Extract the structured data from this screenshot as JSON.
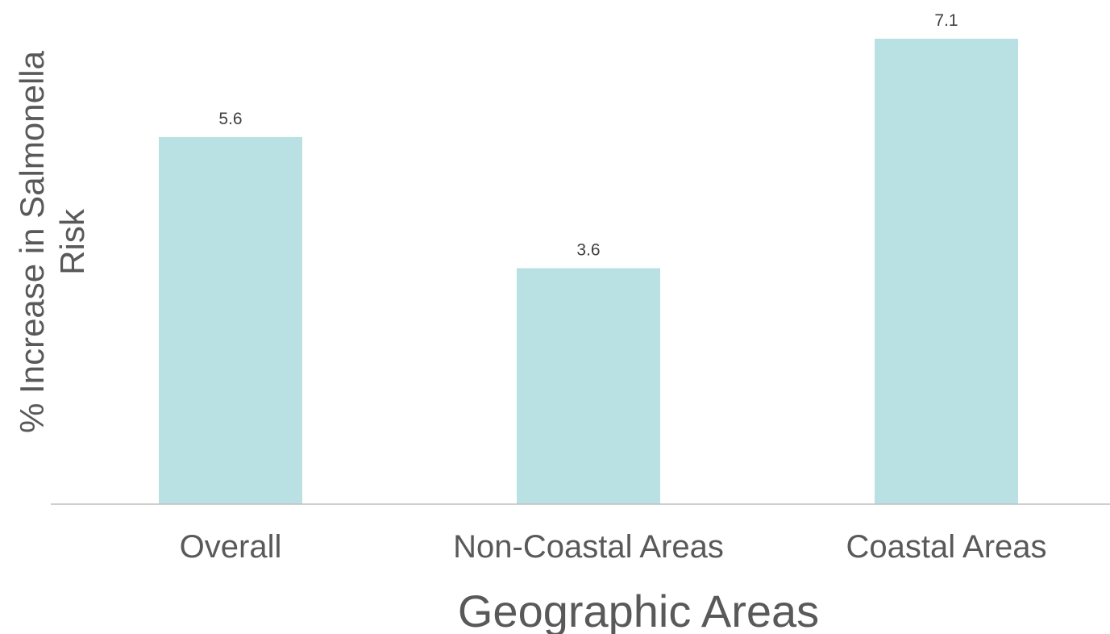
{
  "chart_data": {
    "type": "bar",
    "categories": [
      "Overall",
      "Non-Coastal Areas",
      "Coastal Areas"
    ],
    "values": [
      5.6,
      3.6,
      7.1
    ],
    "data_labels": [
      "5.6",
      "3.6",
      "7.1"
    ],
    "title": "",
    "xlabel": "Geographic Areas",
    "ylabel_lines": [
      "% Increase in Salmonella",
      "Risk"
    ],
    "ylim": [
      0,
      7.1
    ],
    "grid": false,
    "legend": "none",
    "bar_color": "#b9e0e3",
    "axis_color": "#bfbfbf"
  }
}
